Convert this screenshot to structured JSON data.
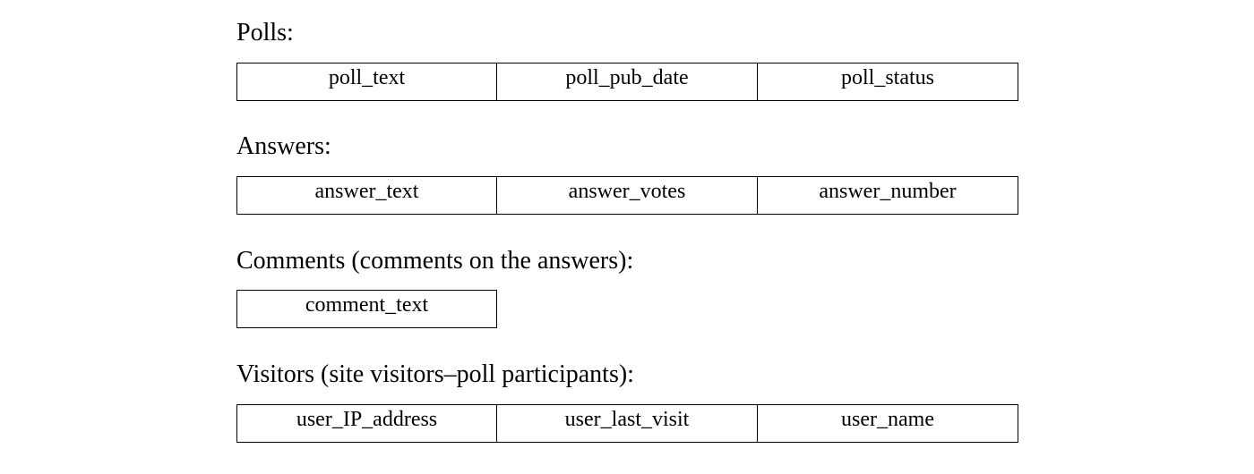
{
  "sections": [
    {
      "title": "Polls:",
      "fields": [
        "poll_text",
        "poll_pub_date",
        "poll_status"
      ]
    },
    {
      "title": "Answers:",
      "fields": [
        "answer_text",
        "answer_votes",
        "answer_number"
      ]
    },
    {
      "title": "Comments (comments on the answers):",
      "fields": [
        "comment_text"
      ]
    },
    {
      "title": "Visitors (site visitors–poll participants):",
      "fields": [
        "user_IP_address",
        "user_last_visit",
        "user_name"
      ]
    }
  ]
}
